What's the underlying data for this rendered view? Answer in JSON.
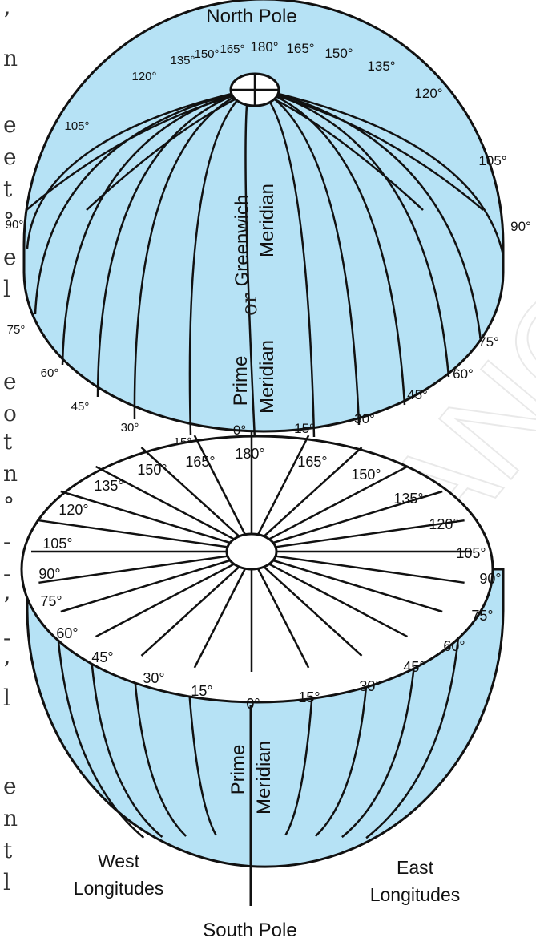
{
  "labels": {
    "north_pole": "North Pole",
    "south_pole": "South Pole",
    "west_line1": "West",
    "west_line2": "Longitudes",
    "east_line1": "East",
    "east_line2": "Longitudes",
    "greenwich": "Greenwich",
    "or_word": "or",
    "prime": "Prime",
    "meridian": "Meridian"
  },
  "upper_top_degrees": {
    "west": [
      "120°",
      "135°",
      "150°",
      "165°"
    ],
    "center": "180°",
    "east": [
      "165°",
      "150°",
      "135°",
      "120°"
    ]
  },
  "upper_side_degrees": {
    "west": [
      "105°",
      "90°",
      "75°",
      "60°",
      "45°",
      "30°",
      "15°"
    ],
    "center": "0°",
    "east": [
      "15°",
      "30°",
      "45°",
      "60°",
      "75°",
      "90°",
      "105°"
    ]
  },
  "face_degrees": {
    "center_top": "180°",
    "center_bottom": "0°",
    "west": [
      "165°",
      "150°",
      "135°",
      "120°",
      "105°",
      "90°",
      "75°",
      "60°",
      "45°",
      "30°",
      "15°"
    ],
    "east": [
      "165°",
      "150°",
      "135°",
      "120°",
      "105°",
      "90°",
      "75°",
      "60°",
      "45°",
      "30°",
      "15°"
    ]
  },
  "margin_chars": [
    "’",
    "n",
    "e",
    "e",
    "t",
    "°",
    "e",
    "l",
    "e",
    "o",
    "t",
    "n",
    "°",
    "-",
    "-",
    "’",
    "-",
    "’",
    "l",
    "e",
    "n",
    "t",
    "l"
  ],
  "watermark": "TELANGANA",
  "colors": {
    "globe_fill": "#b6e2f5",
    "line": "#111111",
    "face_fill": "#ffffff"
  }
}
